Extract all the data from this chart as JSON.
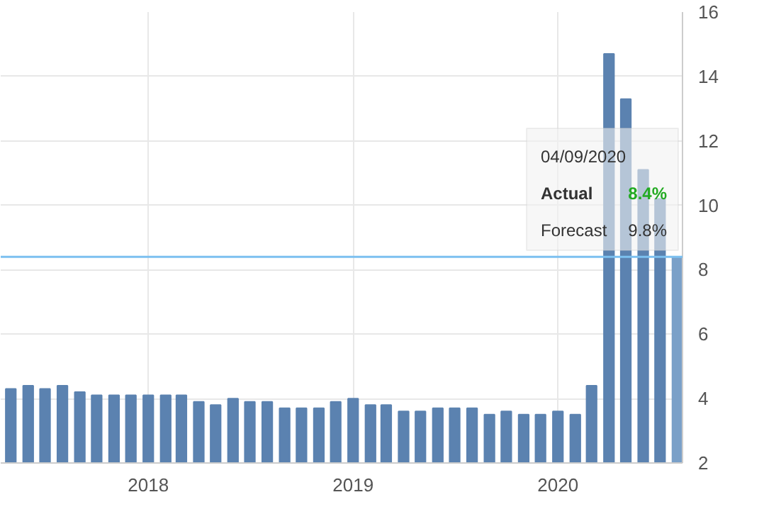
{
  "chart_data": {
    "type": "bar",
    "x": [
      "2017-05",
      "2017-06",
      "2017-07",
      "2017-08",
      "2017-09",
      "2017-10",
      "2017-11",
      "2017-12",
      "2018-01",
      "2018-02",
      "2018-03",
      "2018-04",
      "2018-05",
      "2018-06",
      "2018-07",
      "2018-08",
      "2018-09",
      "2018-10",
      "2018-11",
      "2018-12",
      "2019-01",
      "2019-02",
      "2019-03",
      "2019-04",
      "2019-05",
      "2019-06",
      "2019-07",
      "2019-08",
      "2019-09",
      "2019-10",
      "2019-11",
      "2019-12",
      "2020-01",
      "2020-02",
      "2020-03",
      "2020-04",
      "2020-05",
      "2020-06",
      "2020-07",
      "2020-08"
    ],
    "values": [
      4.3,
      4.4,
      4.3,
      4.4,
      4.2,
      4.1,
      4.1,
      4.1,
      4.1,
      4.1,
      4.1,
      3.9,
      3.8,
      4.0,
      3.9,
      3.9,
      3.7,
      3.7,
      3.7,
      3.9,
      4.0,
      3.8,
      3.8,
      3.6,
      3.6,
      3.7,
      3.7,
      3.7,
      3.5,
      3.6,
      3.5,
      3.5,
      3.6,
      3.5,
      4.4,
      14.7,
      13.3,
      11.1,
      10.2,
      8.4
    ],
    "colors": [
      "#5b82b0",
      "#5b82b0",
      "#5b82b0",
      "#5b82b0",
      "#5b82b0",
      "#5b82b0",
      "#5b82b0",
      "#5b82b0",
      "#5b82b0",
      "#5b82b0",
      "#5b82b0",
      "#5b82b0",
      "#5b82b0",
      "#5b82b0",
      "#5b82b0",
      "#5b82b0",
      "#5b82b0",
      "#5b82b0",
      "#5b82b0",
      "#5b82b0",
      "#5b82b0",
      "#5b82b0",
      "#5b82b0",
      "#5b82b0",
      "#5b82b0",
      "#5b82b0",
      "#5b82b0",
      "#5b82b0",
      "#5b82b0",
      "#5b82b0",
      "#5b82b0",
      "#5b82b0",
      "#5b82b0",
      "#5b82b0",
      "#5b82b0",
      "#5b82b0",
      "#5b82b0",
      "#5b82b0",
      "#5b82b0",
      "#7aa0c8"
    ],
    "xlim": [
      "2017-04-13",
      "2020-08-10"
    ],
    "xticks": [
      {
        "value": "2018-01",
        "label": "2018"
      },
      {
        "value": "2019-01",
        "label": "2019"
      },
      {
        "value": "2020-01",
        "label": "2020"
      }
    ],
    "ylim": [
      2,
      16
    ],
    "yticks": [
      2,
      4,
      6,
      8,
      10,
      12,
      14,
      16
    ],
    "grid": true,
    "ref_lines": [
      {
        "axis": "y",
        "value": 8.4,
        "color": "#7cc0f0"
      }
    ],
    "annotations": [
      "04/09/2020",
      "Actual",
      "8.4%",
      "Forecast",
      "9.8%"
    ]
  }
}
